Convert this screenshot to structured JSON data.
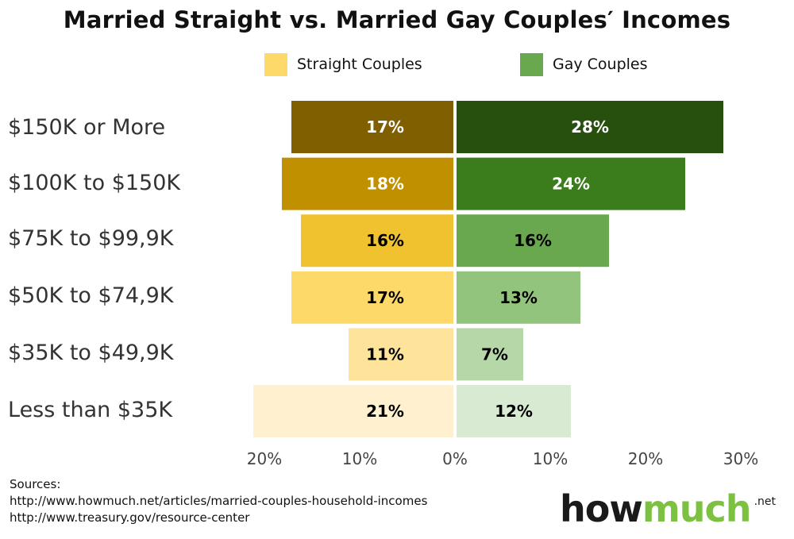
{
  "chart_data": {
    "type": "bar",
    "orientation": "horizontal-diverging",
    "title": "Married Straight vs. Married Gay Couples′ Incomes",
    "categories": [
      "$150K  or More",
      "$100K to $150K",
      "$75K to $99,9K",
      "$50K to $74,9K",
      "$35K to $49,9K",
      "Less than $35K"
    ],
    "series": [
      {
        "name": "Straight Couples",
        "values": [
          17,
          18,
          16,
          17,
          11,
          21
        ],
        "labels": [
          "17%",
          "18%",
          "16%",
          "17%",
          "11%",
          "21%"
        ],
        "colors": [
          "#7f5f00",
          "#c09000",
          "#f0c230",
          "#fdd96a",
          "#fde49a",
          "#fff1cf"
        ],
        "label_colors": [
          "#ffffff",
          "#ffffff",
          "#000000",
          "#000000",
          "#000000",
          "#000000"
        ]
      },
      {
        "name": "Gay Couples",
        "values": [
          28,
          24,
          16,
          13,
          7,
          12
        ],
        "labels": [
          "28%",
          "24%",
          "16%",
          "13%",
          "7%",
          "12%"
        ],
        "colors": [
          "#27500f",
          "#3b7d1d",
          "#6aa84f",
          "#93c47d",
          "#b6d7a8",
          "#d9ead3"
        ],
        "label_colors": [
          "#ffffff",
          "#ffffff",
          "#000000",
          "#000000",
          "#000000",
          "#000000"
        ]
      }
    ],
    "x_ticks": [
      "20%",
      "10%",
      "0%",
      "10%",
      "20%",
      "30%"
    ],
    "xlim": [
      -20,
      30
    ],
    "legend": "top-center",
    "grid": false
  },
  "legend": {
    "straight": {
      "label": "Straight Couples",
      "color": "#fdd96a"
    },
    "gay": {
      "label": "Gay Couples",
      "color": "#6aa84f"
    }
  },
  "sources": {
    "heading": "Sources:",
    "lines": [
      "http://www.howmuch.net/articles/married-couples-household-incomes",
      "http://www.treasury.gov/resource-center"
    ]
  },
  "logo": {
    "how": "how",
    "much": "much",
    "net": ".net"
  }
}
